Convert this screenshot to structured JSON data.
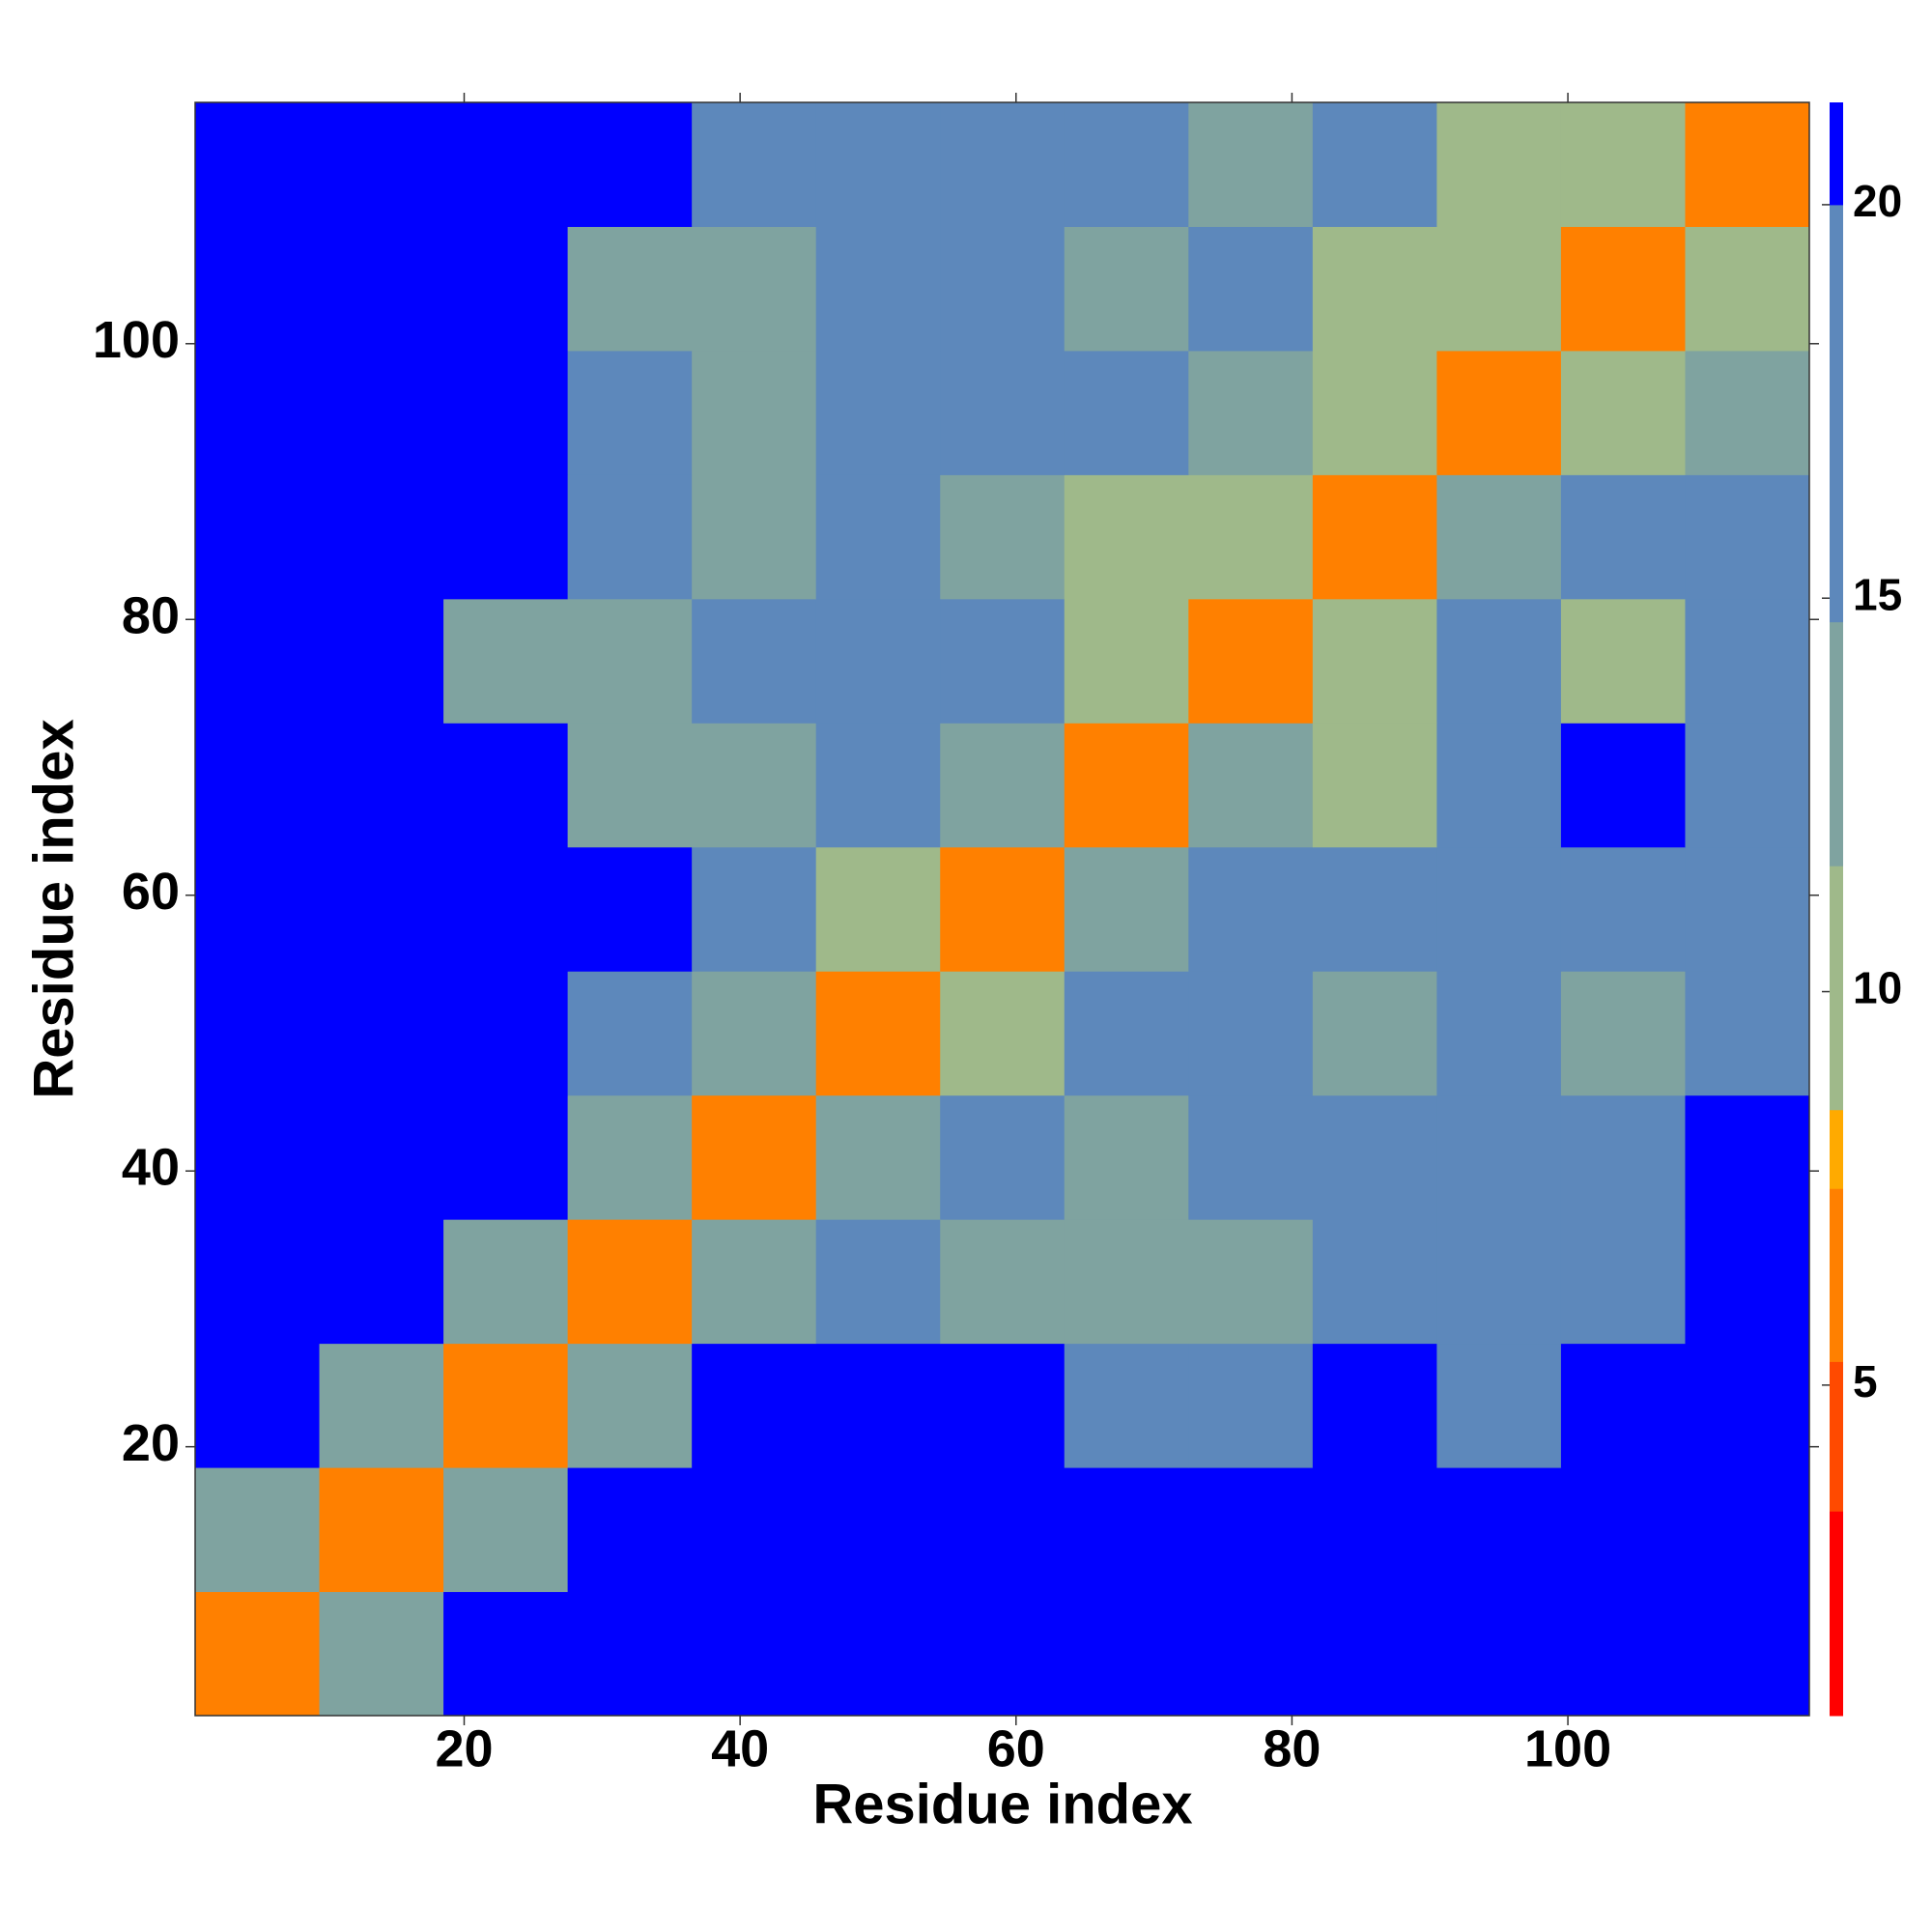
{
  "chart_data": {
    "type": "heatmap",
    "x_label": "Residue index",
    "y_label": "Residue index",
    "xbins": [
      0.5,
      9.5,
      18.5,
      27.5,
      36.5,
      45.5,
      54.5,
      63.5,
      72.5,
      81.5,
      90.5,
      99.5,
      108.5,
      117.5
    ],
    "ybins": [
      0.5,
      9.5,
      18.5,
      27.5,
      36.5,
      45.5,
      54.5,
      63.5,
      72.5,
      81.5,
      90.5,
      99.5,
      108.5,
      117.5
    ],
    "xlim": [
      0.5,
      117.5
    ],
    "ylim": [
      0.5,
      117.5
    ],
    "xticks": [
      20,
      40,
      60,
      80,
      100
    ],
    "yticks": [
      20,
      40,
      60,
      80,
      100
    ],
    "z": [
      [
        7,
        14,
        21.3,
        21.3,
        21.3,
        21.3,
        21.3,
        21.3,
        21.3,
        21.3,
        21.3,
        21.3,
        21.3
      ],
      [
        14,
        7,
        14,
        21.3,
        21.3,
        21.3,
        21.3,
        21.3,
        21.3,
        21.3,
        21.3,
        21.3,
        21.3
      ],
      [
        21.3,
        14,
        7,
        14,
        21.3,
        21.3,
        21.3,
        18,
        18,
        21.3,
        19,
        21.3,
        21.3
      ],
      [
        21.3,
        21.3,
        14,
        7,
        13,
        17,
        14,
        13,
        14,
        17,
        15,
        16,
        21.3
      ],
      [
        21.3,
        21.3,
        21.3,
        13,
        7,
        12,
        15,
        14,
        15,
        16,
        15,
        16,
        21.3
      ],
      [
        21.3,
        21.3,
        21.3,
        16,
        12,
        6,
        11,
        20,
        15,
        14,
        15,
        14,
        16
      ],
      [
        21.3,
        21.3,
        21.3,
        21.3,
        15,
        11,
        6,
        13,
        20,
        15,
        19,
        18,
        19
      ],
      [
        21.3,
        21.3,
        21.3,
        14,
        14,
        15,
        12,
        6,
        12,
        10,
        16,
        21.3,
        15
      ],
      [
        21.3,
        21.3,
        14,
        12,
        15,
        20,
        16,
        10,
        6,
        10,
        20,
        11,
        17
      ],
      [
        21.3,
        21.3,
        21.3,
        16,
        14,
        16,
        14,
        10,
        10,
        6,
        12,
        19,
        17
      ],
      [
        21.3,
        21.3,
        21.3,
        15,
        13,
        15,
        16,
        18,
        14,
        10,
        6,
        11,
        12
      ],
      [
        21.3,
        21.3,
        21.3,
        14,
        13,
        16,
        20,
        14,
        16,
        11,
        11,
        6,
        10
      ],
      [
        21.3,
        21.3,
        21.3,
        21.3,
        17,
        15,
        19,
        17,
        14,
        16,
        11,
        10,
        6
      ]
    ],
    "zlim": [
      0.8,
      21.3
    ],
    "zticks": [
      5,
      10,
      15,
      20
    ],
    "colorscale": [
      [
        3.4,
        "#ff0000"
      ],
      [
        5.3,
        "#ff4a00"
      ],
      [
        7.5,
        "#ff8000"
      ],
      [
        8.5,
        "#ffaa00"
      ],
      [
        11.6,
        "#9fb98a"
      ],
      [
        14.7,
        "#7fa3a0"
      ],
      [
        20,
        "#5d88bb"
      ],
      [
        21.3,
        "#0000ff"
      ]
    ]
  }
}
